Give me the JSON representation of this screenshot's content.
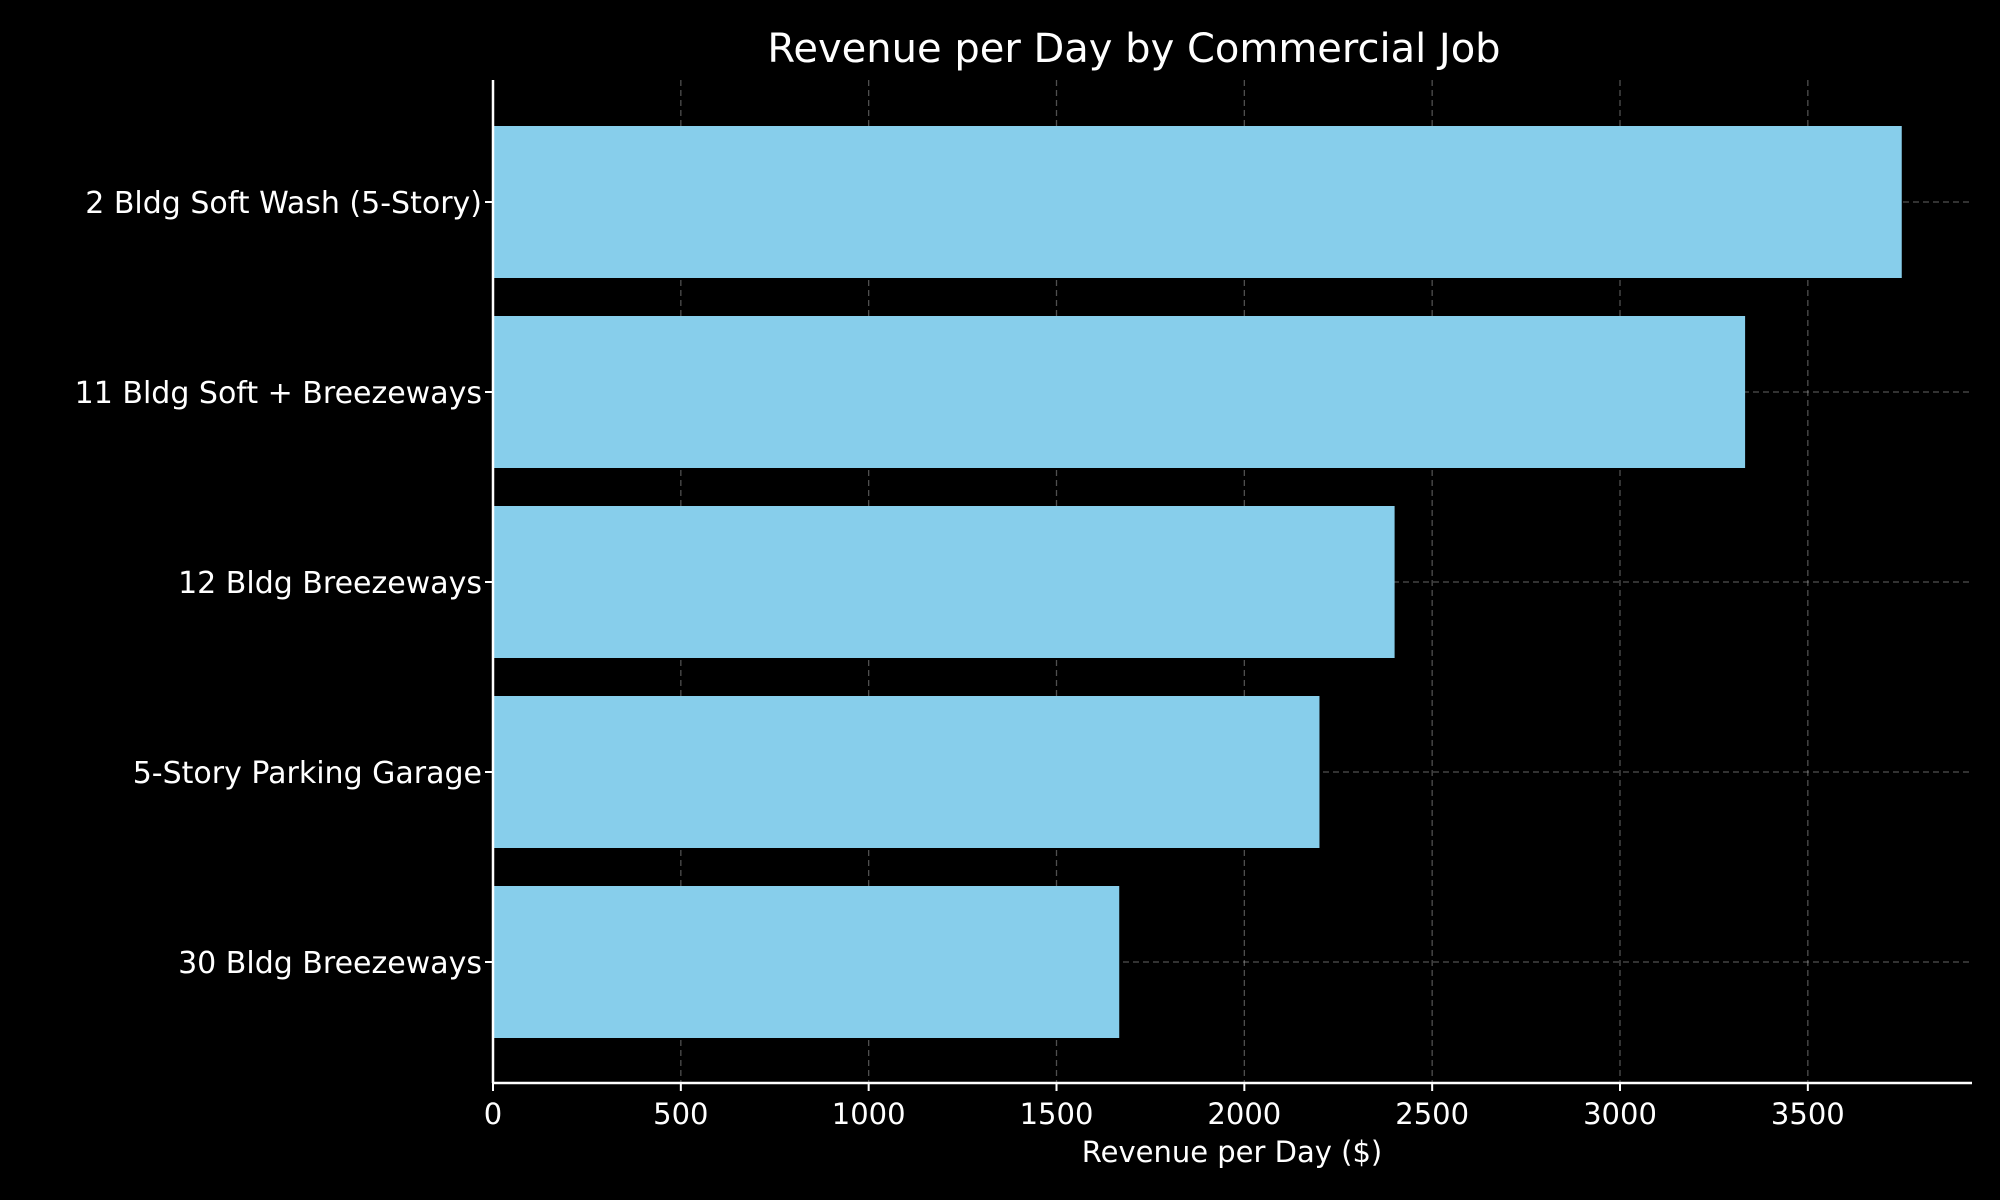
{
  "chart_data": {
    "type": "bar",
    "orientation": "horizontal",
    "title": "Revenue per Day by Commercial Job",
    "xlabel": "Revenue per Day ($)",
    "ylabel": "",
    "categories": [
      "2 Bldg Soft Wash (5-Story)",
      "11 Bldg Soft + Breezeways",
      "12 Bldg Breezeways",
      "5-Story Parking Garage",
      "30 Bldg Breezeways"
    ],
    "values": [
      3750,
      3333,
      2400,
      2200,
      1667
    ],
    "xlim": [
      0,
      3937
    ],
    "xticks": [
      0,
      500,
      1000,
      1500,
      2000,
      2500,
      3000,
      3500
    ],
    "grid": true,
    "legend": "none",
    "colors": {
      "background": "#000000",
      "bar": "#87CEEB",
      "text": "#ffffff",
      "grid": "#b0b0b0"
    }
  }
}
